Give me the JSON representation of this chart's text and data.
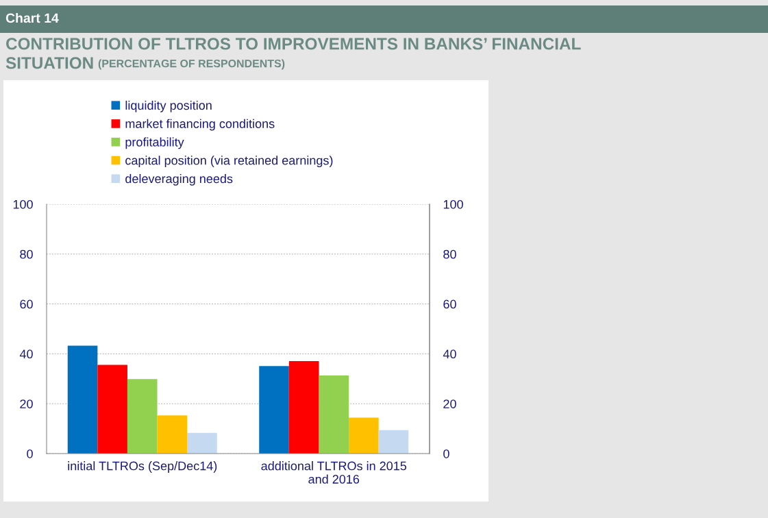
{
  "chart_data": {
    "type": "bar",
    "title": "CONTRIBUTION OF TLTROS TO IMPROVEMENTS IN BANKS’ FINANCIAL SITUATION",
    "subtitle": "(PERCENTAGE OF RESPONDENTS)",
    "annotations": [
      "Chart 14"
    ],
    "categories": [
      "initial TLTROs (Sep/Dec14)",
      "additional TLTROs in 2015 and 2016"
    ],
    "series": [
      {
        "name": "liquidity position",
        "color": "#0070c0",
        "values": [
          43.3,
          35.1
        ]
      },
      {
        "name": "market financing conditions",
        "color": "#ff0000",
        "values": [
          35.6,
          37.1
        ]
      },
      {
        "name": "profitability",
        "color": "#92d050",
        "values": [
          29.9,
          31.3
        ]
      },
      {
        "name": "capital position (via retained earnings)",
        "color": "#ffc000",
        "values": [
          15.3,
          14.4
        ]
      },
      {
        "name": "deleveraging needs",
        "color": "#c5d9f1",
        "values": [
          8.3,
          9.4
        ]
      }
    ],
    "ylim": [
      0,
      100
    ],
    "yticks": [
      0,
      20,
      40,
      60,
      80,
      100
    ],
    "y2lim": [
      0,
      100
    ],
    "y2ticks": [
      0,
      20,
      40,
      60,
      80,
      100
    ],
    "grid": true,
    "legend": "top"
  }
}
